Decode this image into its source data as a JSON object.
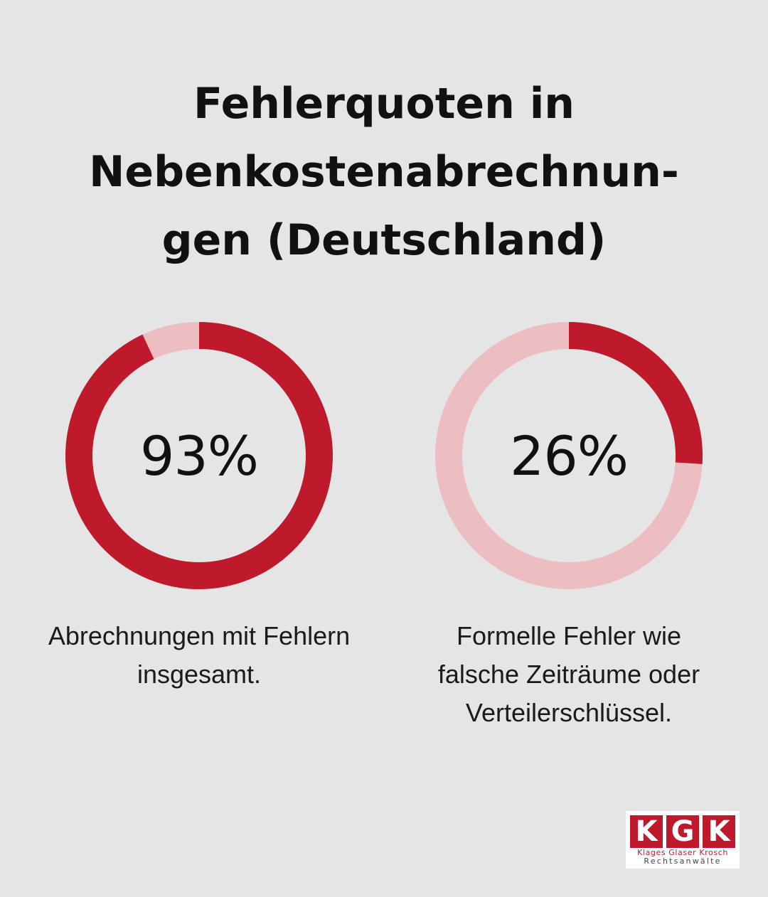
{
  "title": {
    "line1": "Fehlerquoten in",
    "line2": "Nebenkostenabrechnun-",
    "line3": "gen (Deutschland)"
  },
  "colors": {
    "background": "#e5e5e5",
    "accent": "#be1a2b",
    "track": "#ecbec2"
  },
  "chart_data": [
    {
      "type": "pie",
      "value": 93,
      "max": 100,
      "value_label": "93%",
      "caption_lines": [
        "Abrechnungen mit Fehlern",
        "insgesamt."
      ]
    },
    {
      "type": "pie",
      "value": 26,
      "max": 100,
      "value_label": "26%",
      "caption_lines": [
        "Formelle Fehler wie",
        "falsche Zeiträume oder",
        "Verteilerschlüssel."
      ]
    }
  ],
  "logo": {
    "letters": [
      "K",
      "G",
      "K"
    ],
    "names": "Klages Glaser Krosch",
    "subtitle": "Rechtsanwälte"
  }
}
